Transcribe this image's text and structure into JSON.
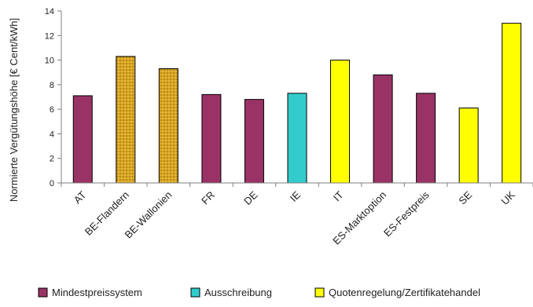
{
  "chart_data": {
    "type": "bar",
    "ylabel": "Normierte Vergütungshöhe [€ Cent/kWh]",
    "ylim": [
      0,
      14
    ],
    "yticks": [
      0,
      2,
      4,
      6,
      8,
      10,
      12,
      14
    ],
    "grid": false,
    "categories": [
      "AT",
      "BE-Flandern",
      "BE-Wallonien",
      "FR",
      "DE",
      "IE",
      "IT",
      "ES-Marktoption",
      "ES-Festpreis",
      "SE",
      "UK"
    ],
    "values": [
      7.1,
      10.3,
      9.3,
      7.2,
      6.8,
      7.3,
      10.0,
      8.8,
      7.3,
      6.1,
      13.0
    ],
    "bar_types": [
      "mindest",
      "quote-hatched",
      "quote-hatched",
      "mindest",
      "mindest",
      "ausschreibung",
      "quote",
      "mindest",
      "mindest",
      "quote",
      "quote"
    ],
    "colors": {
      "mindest": "#993366",
      "ausschreibung": "#33CCCC",
      "quote": "#FFFF00",
      "quote-hatched": "#DAA520",
      "axis": "#808080"
    },
    "legend_position": "bottom",
    "legend": [
      {
        "key": "mindest",
        "label": "Mindestpreissystem"
      },
      {
        "key": "ausschreibung",
        "label": "Ausschreibung"
      },
      {
        "key": "quote",
        "label": "Quotenregelung/Zertifikatehandel"
      }
    ]
  }
}
